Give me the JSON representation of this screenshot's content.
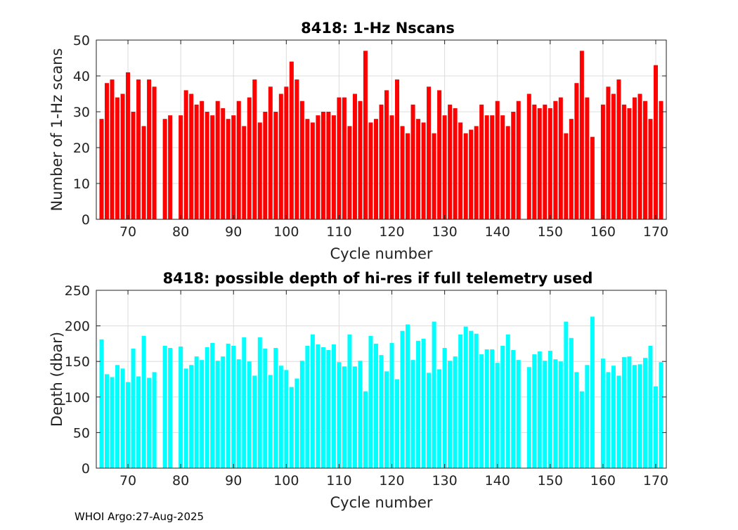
{
  "footer_text": "WHOI Argo:27-Aug-2025",
  "colors": {
    "top_bars": "#ff0000",
    "bottom_bars": "#00ffff",
    "grid": "#dcdcdc",
    "axis": "#222222"
  },
  "chart_data": [
    {
      "type": "bar",
      "title": "8418: 1-Hz Nscans",
      "xlabel": "Cycle number",
      "ylabel": "Number of 1-Hz scans",
      "xlim": [
        64,
        172
      ],
      "ylim": [
        0,
        50
      ],
      "xticks": [
        "70",
        "80",
        "90",
        "100",
        "110",
        "120",
        "130",
        "140",
        "150",
        "160",
        "170"
      ],
      "yticks": [
        "0",
        "10",
        "20",
        "30",
        "40",
        "50"
      ],
      "grid": true,
      "x": [
        65,
        66,
        67,
        68,
        69,
        70,
        71,
        72,
        73,
        74,
        75,
        77,
        78,
        80,
        81,
        82,
        83,
        84,
        85,
        86,
        87,
        88,
        89,
        90,
        91,
        92,
        93,
        94,
        95,
        96,
        97,
        98,
        99,
        100,
        101,
        102,
        103,
        104,
        105,
        106,
        107,
        108,
        109,
        110,
        111,
        112,
        113,
        114,
        115,
        116,
        117,
        118,
        119,
        120,
        121,
        122,
        123,
        124,
        125,
        126,
        127,
        128,
        129,
        130,
        131,
        132,
        133,
        134,
        135,
        136,
        137,
        138,
        139,
        140,
        141,
        142,
        143,
        144,
        146,
        147,
        148,
        149,
        150,
        151,
        152,
        153,
        154,
        155,
        156,
        157,
        158,
        160,
        161,
        162,
        163,
        164,
        165,
        166,
        167,
        168,
        169,
        170,
        171
      ],
      "values": [
        28,
        38,
        39,
        34,
        35,
        41,
        30,
        39,
        26,
        39,
        37,
        28,
        29,
        29,
        36,
        35,
        32,
        33,
        30,
        29,
        33,
        31,
        28,
        29,
        33,
        26,
        34,
        39,
        27,
        30,
        37,
        30,
        35,
        37,
        44,
        39,
        33,
        28,
        27,
        29,
        30,
        30,
        29,
        34,
        34,
        26,
        35,
        33,
        47,
        27,
        28,
        32,
        36,
        29,
        39,
        26,
        24,
        32,
        28,
        27,
        37,
        24,
        36,
        29,
        32,
        31,
        27,
        24,
        25,
        26,
        32,
        29,
        29,
        33,
        29,
        26,
        30,
        33,
        35,
        32,
        31,
        32,
        31,
        33,
        34,
        24,
        28,
        38,
        47,
        34,
        23,
        32,
        37,
        35,
        39,
        32,
        31,
        34,
        35,
        33,
        28,
        43,
        33
      ]
    },
    {
      "type": "bar",
      "title": "8418: possible depth of hi-res if full telemetry used",
      "xlabel": "Cycle number",
      "ylabel": "Depth (dbar)",
      "xlim": [
        64,
        172
      ],
      "ylim": [
        0,
        250
      ],
      "xticks": [
        "70",
        "80",
        "90",
        "100",
        "110",
        "120",
        "130",
        "140",
        "150",
        "160",
        "170"
      ],
      "yticks": [
        "0",
        "50",
        "100",
        "150",
        "200",
        "250"
      ],
      "grid": true,
      "x": [
        65,
        66,
        67,
        68,
        69,
        70,
        71,
        72,
        73,
        74,
        75,
        77,
        78,
        80,
        81,
        82,
        83,
        84,
        85,
        86,
        87,
        88,
        89,
        90,
        91,
        92,
        93,
        94,
        95,
        96,
        97,
        98,
        99,
        100,
        101,
        102,
        103,
        104,
        105,
        106,
        107,
        108,
        109,
        110,
        111,
        112,
        113,
        114,
        115,
        116,
        117,
        118,
        119,
        120,
        121,
        122,
        123,
        124,
        125,
        126,
        127,
        128,
        129,
        130,
        131,
        132,
        133,
        134,
        135,
        136,
        137,
        138,
        139,
        140,
        141,
        142,
        143,
        144,
        146,
        147,
        148,
        149,
        150,
        151,
        152,
        153,
        154,
        155,
        156,
        157,
        158,
        160,
        161,
        162,
        163,
        164,
        165,
        166,
        167,
        168,
        169,
        170,
        171
      ],
      "values": [
        181,
        132,
        128,
        145,
        140,
        121,
        168,
        129,
        186,
        127,
        135,
        172,
        169,
        171,
        140,
        145,
        157,
        152,
        170,
        176,
        151,
        157,
        175,
        172,
        153,
        184,
        150,
        130,
        184,
        168,
        131,
        169,
        144,
        138,
        114,
        126,
        151,
        172,
        188,
        174,
        170,
        166,
        174,
        149,
        143,
        188,
        143,
        151,
        108,
        186,
        175,
        159,
        136,
        176,
        125,
        193,
        202,
        152,
        179,
        182,
        134,
        206,
        139,
        169,
        151,
        157,
        188,
        199,
        193,
        189,
        160,
        167,
        167,
        148,
        172,
        188,
        166,
        152,
        142,
        160,
        164,
        151,
        165,
        153,
        150,
        206,
        183,
        135,
        108,
        145,
        213,
        154,
        135,
        144,
        130,
        156,
        157,
        145,
        146,
        155,
        172,
        115,
        149
      ]
    }
  ]
}
